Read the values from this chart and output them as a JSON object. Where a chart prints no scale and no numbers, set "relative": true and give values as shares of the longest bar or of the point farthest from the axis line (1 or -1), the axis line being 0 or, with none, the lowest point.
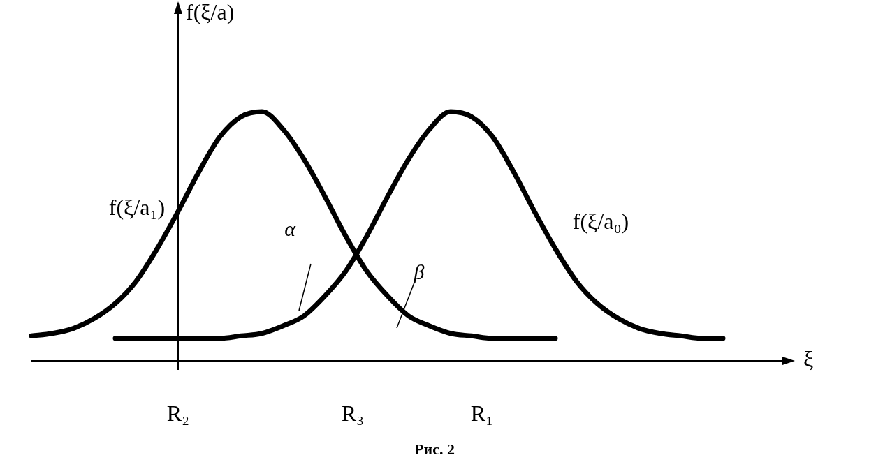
{
  "chart_data": {
    "type": "line",
    "relative": true,
    "title": "Рис. 2",
    "xlabel": "ξ",
    "ylabel": "f(ξ/a)",
    "categories": [
      null,
      null,
      null,
      null,
      null,
      null,
      null,
      null,
      null,
      null,
      null,
      null,
      null,
      null,
      null,
      null,
      null,
      null,
      null,
      null,
      null,
      null,
      null,
      null,
      null,
      null,
      null,
      null,
      null,
      null,
      null,
      null,
      null,
      null
    ],
    "series": [
      {
        "name": "f(ξ/a₁)",
        "color": "#000000",
        "values": [
          0.1,
          0.11,
          0.13,
          0.17,
          0.23,
          0.32,
          0.45,
          0.6,
          0.76,
          0.9,
          0.98,
          1.0,
          0.93,
          0.81,
          0.66,
          0.5,
          0.36,
          0.26,
          0.18,
          0.14,
          0.11,
          0.1,
          0.09,
          0.09,
          0.09,
          0.09,
          null,
          null,
          null,
          null,
          null,
          null,
          null,
          null
        ]
      },
      {
        "name": "f(ξ/a₀)",
        "color": "#000000",
        "values": [
          null,
          null,
          null,
          null,
          0.09,
          0.09,
          0.09,
          0.09,
          0.09,
          0.09,
          0.1,
          0.11,
          0.14,
          0.18,
          0.26,
          0.36,
          0.5,
          0.66,
          0.81,
          0.93,
          1.0,
          0.98,
          0.9,
          0.76,
          0.6,
          0.45,
          0.32,
          0.23,
          0.17,
          0.13,
          0.11,
          0.1,
          0.09,
          0.09
        ]
      }
    ],
    "annotations": [
      "α",
      "β",
      "R₂",
      "R₃",
      "R₁"
    ],
    "legend": false,
    "marker": "none",
    "line_style": "solid"
  }
}
